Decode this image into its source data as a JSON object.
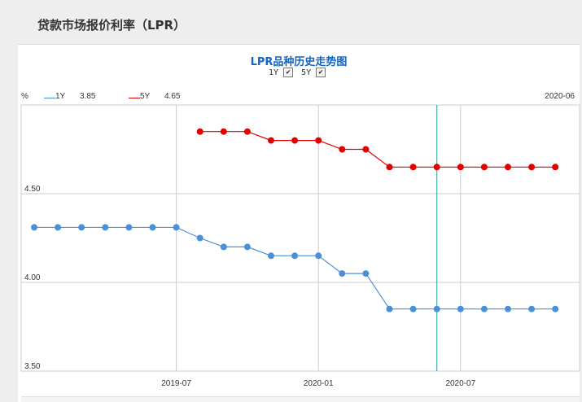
{
  "page": {
    "section_title": "贷款市场报价利率（LPR）"
  },
  "legend": {
    "unit": "%",
    "items": [
      {
        "name": "1Y",
        "value": "3.85",
        "color": "#4a90d9"
      },
      {
        "name": "5Y",
        "value": "4.65",
        "color": "#e00000"
      }
    ],
    "cursor_date": "2020-06"
  },
  "toggles": [
    {
      "label": "1Y",
      "checked": true
    },
    {
      "label": "5Y",
      "checked": true
    }
  ],
  "chart_data": {
    "type": "line",
    "title": "LPR品种历史走势图",
    "x": [
      "2019-01",
      "2019-02",
      "2019-03",
      "2019-04",
      "2019-05",
      "2019-06",
      "2019-07",
      "2019-08",
      "2019-09",
      "2019-10",
      "2019-11",
      "2019-12",
      "2020-01",
      "2020-02",
      "2020-03",
      "2020-04",
      "2020-05",
      "2020-06",
      "2020-07",
      "2020-08",
      "2020-09",
      "2020-10",
      "2020-11"
    ],
    "series": [
      {
        "name": "1Y",
        "color": "#4a90d9",
        "values": [
          4.31,
          4.31,
          4.31,
          4.31,
          4.31,
          4.31,
          4.31,
          4.25,
          4.2,
          4.2,
          4.15,
          4.15,
          4.15,
          4.05,
          4.05,
          3.85,
          3.85,
          3.85,
          3.85,
          3.85,
          3.85,
          3.85,
          3.85
        ]
      },
      {
        "name": "5Y",
        "color": "#e00000",
        "values": [
          null,
          null,
          null,
          null,
          null,
          null,
          null,
          4.85,
          4.85,
          4.85,
          4.8,
          4.8,
          4.8,
          4.75,
          4.75,
          4.65,
          4.65,
          4.65,
          4.65,
          4.65,
          4.65,
          4.65,
          4.65
        ]
      }
    ],
    "y_ticks": [
      "4.50",
      "4.00",
      "3.50"
    ],
    "x_ticks": [
      "2019-07",
      "2020-01",
      "2020-07"
    ],
    "ylim": [
      3.5,
      5.0
    ],
    "grid": true,
    "cursor_at": "2020-06"
  }
}
